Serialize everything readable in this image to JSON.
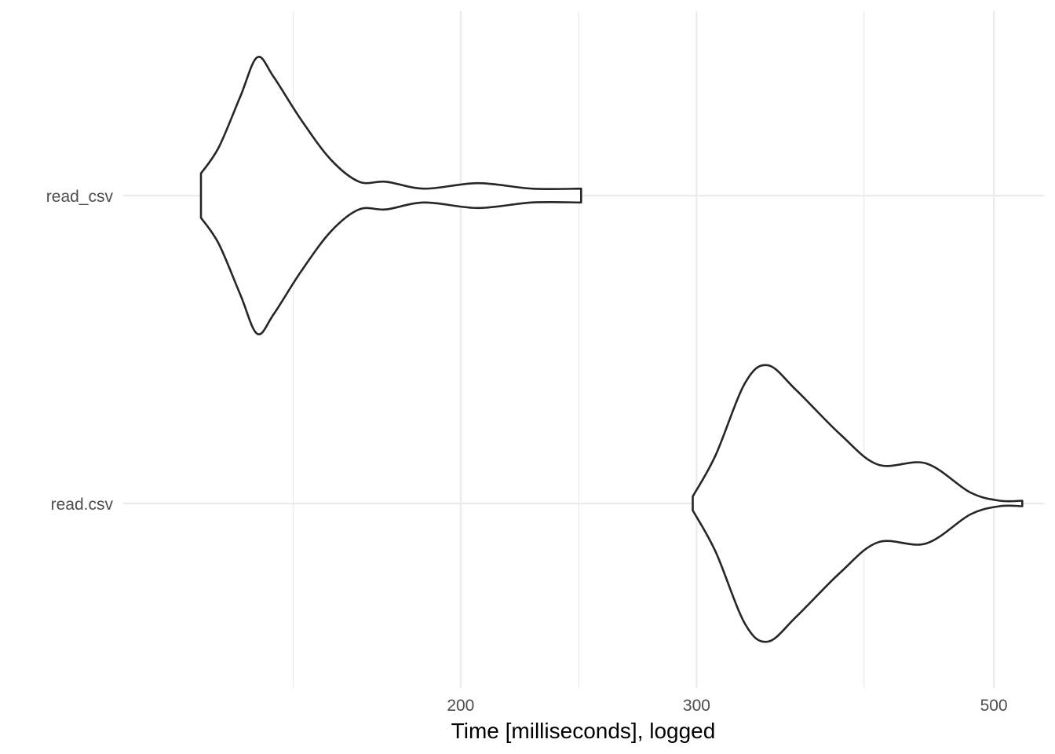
{
  "chart_data": {
    "type": "violin",
    "title": "",
    "xlabel": "Time [milliseconds], logged",
    "ylabel": "",
    "x_scale": "log10",
    "xlim": [
      112,
      545
    ],
    "x_ticks": [
      {
        "value": 200,
        "label": "200"
      },
      {
        "value": 300,
        "label": "300"
      },
      {
        "value": 500,
        "label": "500"
      }
    ],
    "x_minor_gridlines": [
      150,
      245,
      400
    ],
    "grid": true,
    "categories": [
      "read_csv",
      "read.csv"
    ],
    "series": [
      {
        "category": "read_csv",
        "min": 128,
        "max": 246,
        "density": [
          [
            128,
            0.16
          ],
          [
            132,
            0.35
          ],
          [
            137,
            0.72
          ],
          [
            141,
            1.0
          ],
          [
            145,
            0.86
          ],
          [
            152,
            0.55
          ],
          [
            160,
            0.26
          ],
          [
            168,
            0.1
          ],
          [
            176,
            0.1
          ],
          [
            188,
            0.05
          ],
          [
            206,
            0.09
          ],
          [
            226,
            0.05
          ],
          [
            246,
            0.05
          ]
        ]
      },
      {
        "category": "read.csv",
        "min": 298,
        "max": 525,
        "density": [
          [
            298,
            0.05
          ],
          [
            310,
            0.35
          ],
          [
            326,
            0.87
          ],
          [
            339,
            1.0
          ],
          [
            356,
            0.82
          ],
          [
            384,
            0.5
          ],
          [
            410,
            0.28
          ],
          [
            445,
            0.29
          ],
          [
            480,
            0.08
          ],
          [
            505,
            0.02
          ],
          [
            525,
            0.02
          ]
        ]
      }
    ]
  }
}
